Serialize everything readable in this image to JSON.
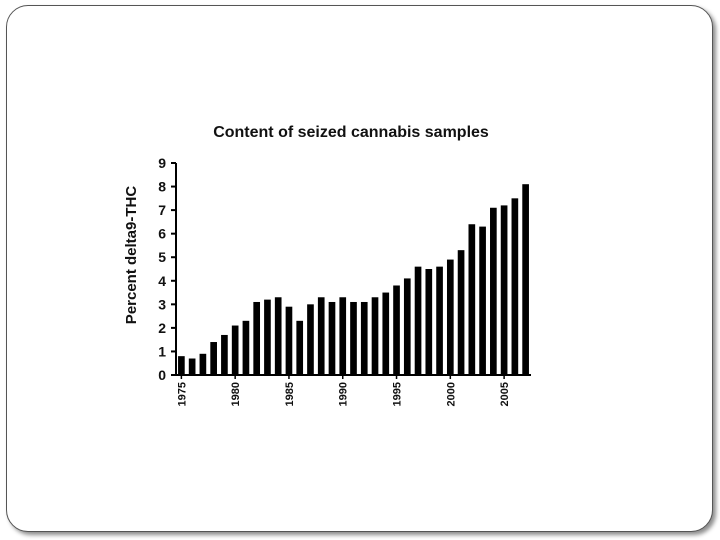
{
  "chart_data": {
    "type": "bar",
    "title": "Content of seized cannabis samples",
    "xlabel": "",
    "ylabel": "Percent delta9-THC",
    "ylim": [
      0,
      9
    ],
    "yticks": [
      "0",
      "1",
      "2",
      "3",
      "4",
      "5",
      "6",
      "7",
      "8",
      "9"
    ],
    "xtick_labels": [
      "1975",
      "1980",
      "1985",
      "1990",
      "1995",
      "2000",
      "2005"
    ],
    "categories": [
      "1975",
      "1976",
      "1977",
      "1978",
      "1979",
      "1980",
      "1981",
      "1982",
      "1983",
      "1984",
      "1985",
      "1986",
      "1987",
      "1988",
      "1989",
      "1990",
      "1991",
      "1992",
      "1993",
      "1994",
      "1995",
      "1996",
      "1997",
      "1998",
      "1999",
      "2000",
      "2001",
      "2002",
      "2003",
      "2004",
      "2005",
      "2006",
      "2007"
    ],
    "values": [
      0.8,
      0.7,
      0.9,
      1.4,
      1.7,
      2.1,
      2.3,
      3.1,
      3.2,
      3.3,
      2.9,
      2.3,
      3.0,
      3.3,
      3.1,
      3.3,
      3.1,
      3.1,
      3.3,
      3.5,
      3.8,
      4.1,
      4.6,
      4.5,
      4.6,
      4.9,
      5.3,
      6.4,
      6.3,
      7.1,
      7.2,
      7.5,
      8.1
    ],
    "grid": false,
    "legend": "none",
    "bar_color": "#000000"
  }
}
